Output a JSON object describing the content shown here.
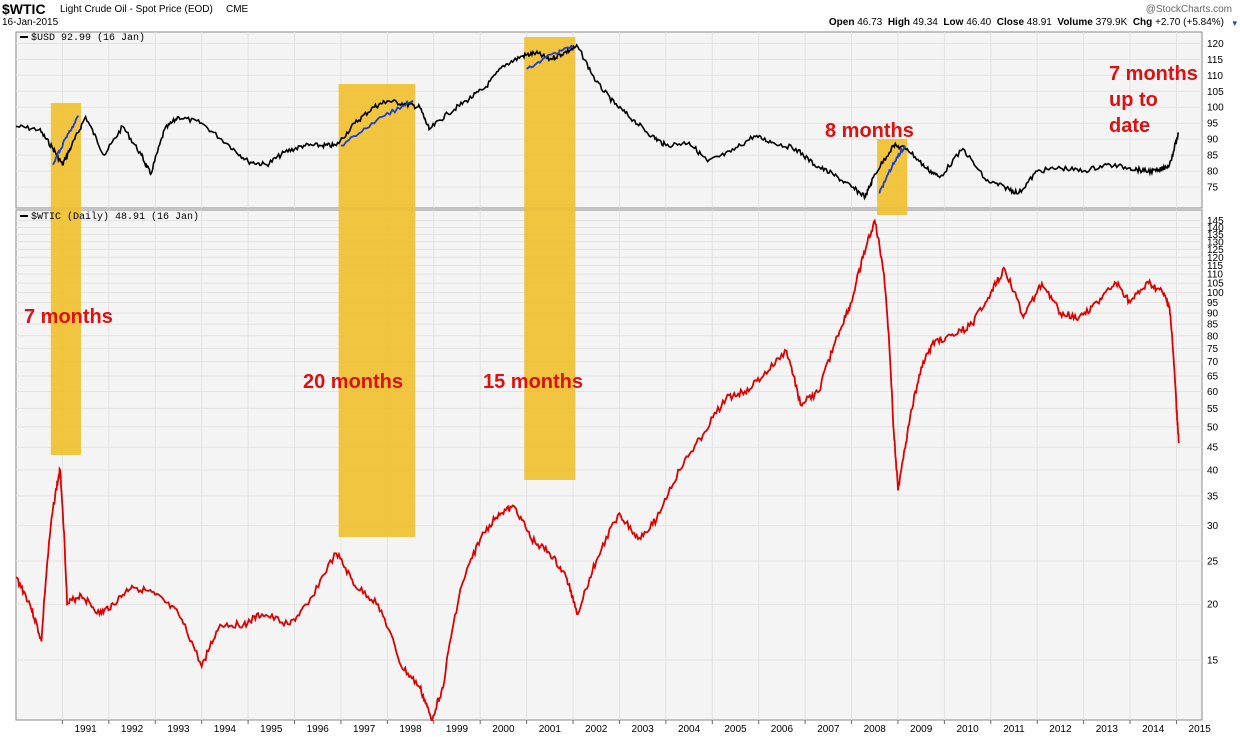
{
  "header": {
    "symbol": "$WTIC",
    "title": "Light Crude Oil - Spot Price (EOD)",
    "exchange": "CME",
    "date": "16-Jan-2015",
    "watermark": "@StockCharts.com",
    "ohlc": [
      {
        "label": "Open",
        "value": "46.73"
      },
      {
        "label": "High",
        "value": "49.34"
      },
      {
        "label": "Low",
        "value": "46.40"
      },
      {
        "label": "Close",
        "value": "48.91"
      },
      {
        "label": "Volume",
        "value": "379.9K"
      },
      {
        "label": "Chg",
        "value": "+2.70 (+5.84%)"
      }
    ]
  },
  "colors": {
    "usd_line": "#000000",
    "usd_highlight": "#1a3fd6",
    "oil_line": "#e00000",
    "oil_up": "#000000",
    "box": "#f0c030",
    "annotation": "#e01010",
    "grid": "#e2e2e2",
    "panel_bg": "#f4f4f4"
  },
  "chart_data": [
    {
      "type": "line",
      "legend": "$USD 92.99 (16 Jan)",
      "y_ticks": [
        75,
        80,
        85,
        90,
        95,
        100,
        105,
        110,
        115,
        120
      ],
      "ylim": [
        70,
        122
      ],
      "x": [
        1990.0,
        1990.5,
        1990.8,
        1991.0,
        1991.2,
        1991.5,
        1991.9,
        1992.3,
        1992.7,
        1992.9,
        1993.2,
        1993.5,
        1994.0,
        1994.6,
        1995.0,
        1995.4,
        1995.8,
        1996.2,
        1996.6,
        1996.9,
        1997.3,
        1997.7,
        1998.0,
        1998.4,
        1998.7,
        1998.9,
        1999.3,
        1999.7,
        2000.1,
        2000.5,
        2000.9,
        2001.2,
        2001.5,
        2001.8,
        2002.1,
        2002.5,
        2002.9,
        2003.3,
        2003.7,
        2004.0,
        2004.5,
        2004.9,
        2005.4,
        2005.9,
        2006.3,
        2006.8,
        2007.2,
        2007.6,
        2008.0,
        2008.3,
        2008.5,
        2008.9,
        2009.2,
        2009.6,
        2009.9,
        2010.4,
        2010.9,
        2011.3,
        2011.6,
        2012.0,
        2012.5,
        2013.0,
        2013.5,
        2014.0,
        2014.3,
        2014.6,
        2014.85,
        2015.05
      ],
      "y": [
        94,
        93,
        87,
        82,
        88,
        97,
        85,
        94,
        85,
        79,
        93,
        97,
        95,
        88,
        83,
        82,
        86,
        88,
        88,
        88,
        95,
        100,
        102,
        101,
        100,
        93,
        98,
        102,
        106,
        113,
        116,
        117,
        115,
        117,
        119,
        108,
        101,
        96,
        91,
        88,
        89,
        83,
        86,
        91,
        89,
        87,
        82,
        79,
        75,
        72,
        79,
        88,
        87,
        81,
        78,
        87,
        77,
        75,
        73,
        80,
        81,
        80,
        82,
        81,
        80,
        80,
        82,
        92
      ]
    },
    {
      "type": "line",
      "legend": "$WTIC (Daily) 48.91 (16 Jan)",
      "y_scale": "log",
      "y_ticks": [
        15,
        20,
        25,
        30,
        35,
        40,
        45,
        50,
        55,
        60,
        65,
        70,
        75,
        80,
        85,
        90,
        95,
        100,
        105,
        110,
        115,
        120,
        125,
        130,
        135,
        140,
        145
      ],
      "ylim": [
        11,
        147
      ],
      "x_ticks": [
        "1991",
        "1992",
        "1993",
        "1994",
        "1995",
        "1996",
        "1997",
        "1998",
        "1999",
        "2000",
        "2001",
        "2002",
        "2003",
        "2004",
        "2005",
        "2006",
        "2007",
        "2008",
        "2009",
        "2010",
        "2011",
        "2012",
        "2013",
        "2014",
        "2015"
      ],
      "x": [
        1990.0,
        1990.3,
        1990.55,
        1990.8,
        1990.95,
        1991.1,
        1991.4,
        1991.8,
        1992.1,
        1992.5,
        1993.0,
        1993.5,
        1994.0,
        1994.4,
        1994.9,
        1995.3,
        1995.9,
        1996.3,
        1996.9,
        1997.3,
        1997.8,
        1998.3,
        1998.7,
        1998.95,
        1999.2,
        1999.6,
        2000.0,
        2000.4,
        2000.75,
        2001.1,
        2001.5,
        2001.85,
        2002.1,
        2002.5,
        2003.0,
        2003.4,
        2003.8,
        2004.3,
        2004.8,
        2005.3,
        2005.7,
        2006.1,
        2006.6,
        2006.9,
        2007.3,
        2007.7,
        2008.0,
        2008.25,
        2008.5,
        2008.7,
        2008.9,
        2009.0,
        2009.2,
        2009.5,
        2009.8,
        2010.2,
        2010.6,
        2011.0,
        2011.3,
        2011.7,
        2012.1,
        2012.5,
        2012.9,
        2013.3,
        2013.7,
        2014.0,
        2014.4,
        2014.7,
        2014.85,
        2015.0,
        2015.05
      ],
      "y": [
        23,
        20,
        16.5,
        33,
        40,
        20,
        21,
        19,
        20,
        22,
        21,
        19,
        14.5,
        18,
        18,
        19,
        18,
        20,
        26,
        22,
        20,
        14.5,
        13,
        11,
        13,
        22,
        28,
        32,
        33,
        28,
        26,
        23,
        19,
        25,
        32,
        28,
        31,
        40,
        48,
        58,
        60,
        65,
        74,
        56,
        60,
        80,
        95,
        120,
        145,
        110,
        50,
        36,
        48,
        68,
        78,
        80,
        85,
        100,
        113,
        88,
        105,
        90,
        88,
        95,
        105,
        95,
        105,
        100,
        93,
        55,
        46
      ]
    }
  ],
  "annotations": [
    {
      "label": "7 months"
    },
    {
      "label": "20 months"
    },
    {
      "label": "15 months"
    },
    {
      "label": "8 months"
    },
    {
      "lines": [
        "7 months",
        "up to",
        "date"
      ]
    }
  ],
  "highlight_periods": [
    {
      "start": 1990.75,
      "end": 1991.4,
      "usd_from": 82,
      "usd_to": 97
    },
    {
      "start": 1996.95,
      "end": 1998.6,
      "usd_from": 88,
      "usd_to": 102
    },
    {
      "start": 2000.95,
      "end": 2002.05,
      "usd_from": 112,
      "usd_to": 119
    },
    {
      "start": 2008.55,
      "end": 2009.2,
      "usd_from": 73,
      "usd_to": 88
    }
  ]
}
